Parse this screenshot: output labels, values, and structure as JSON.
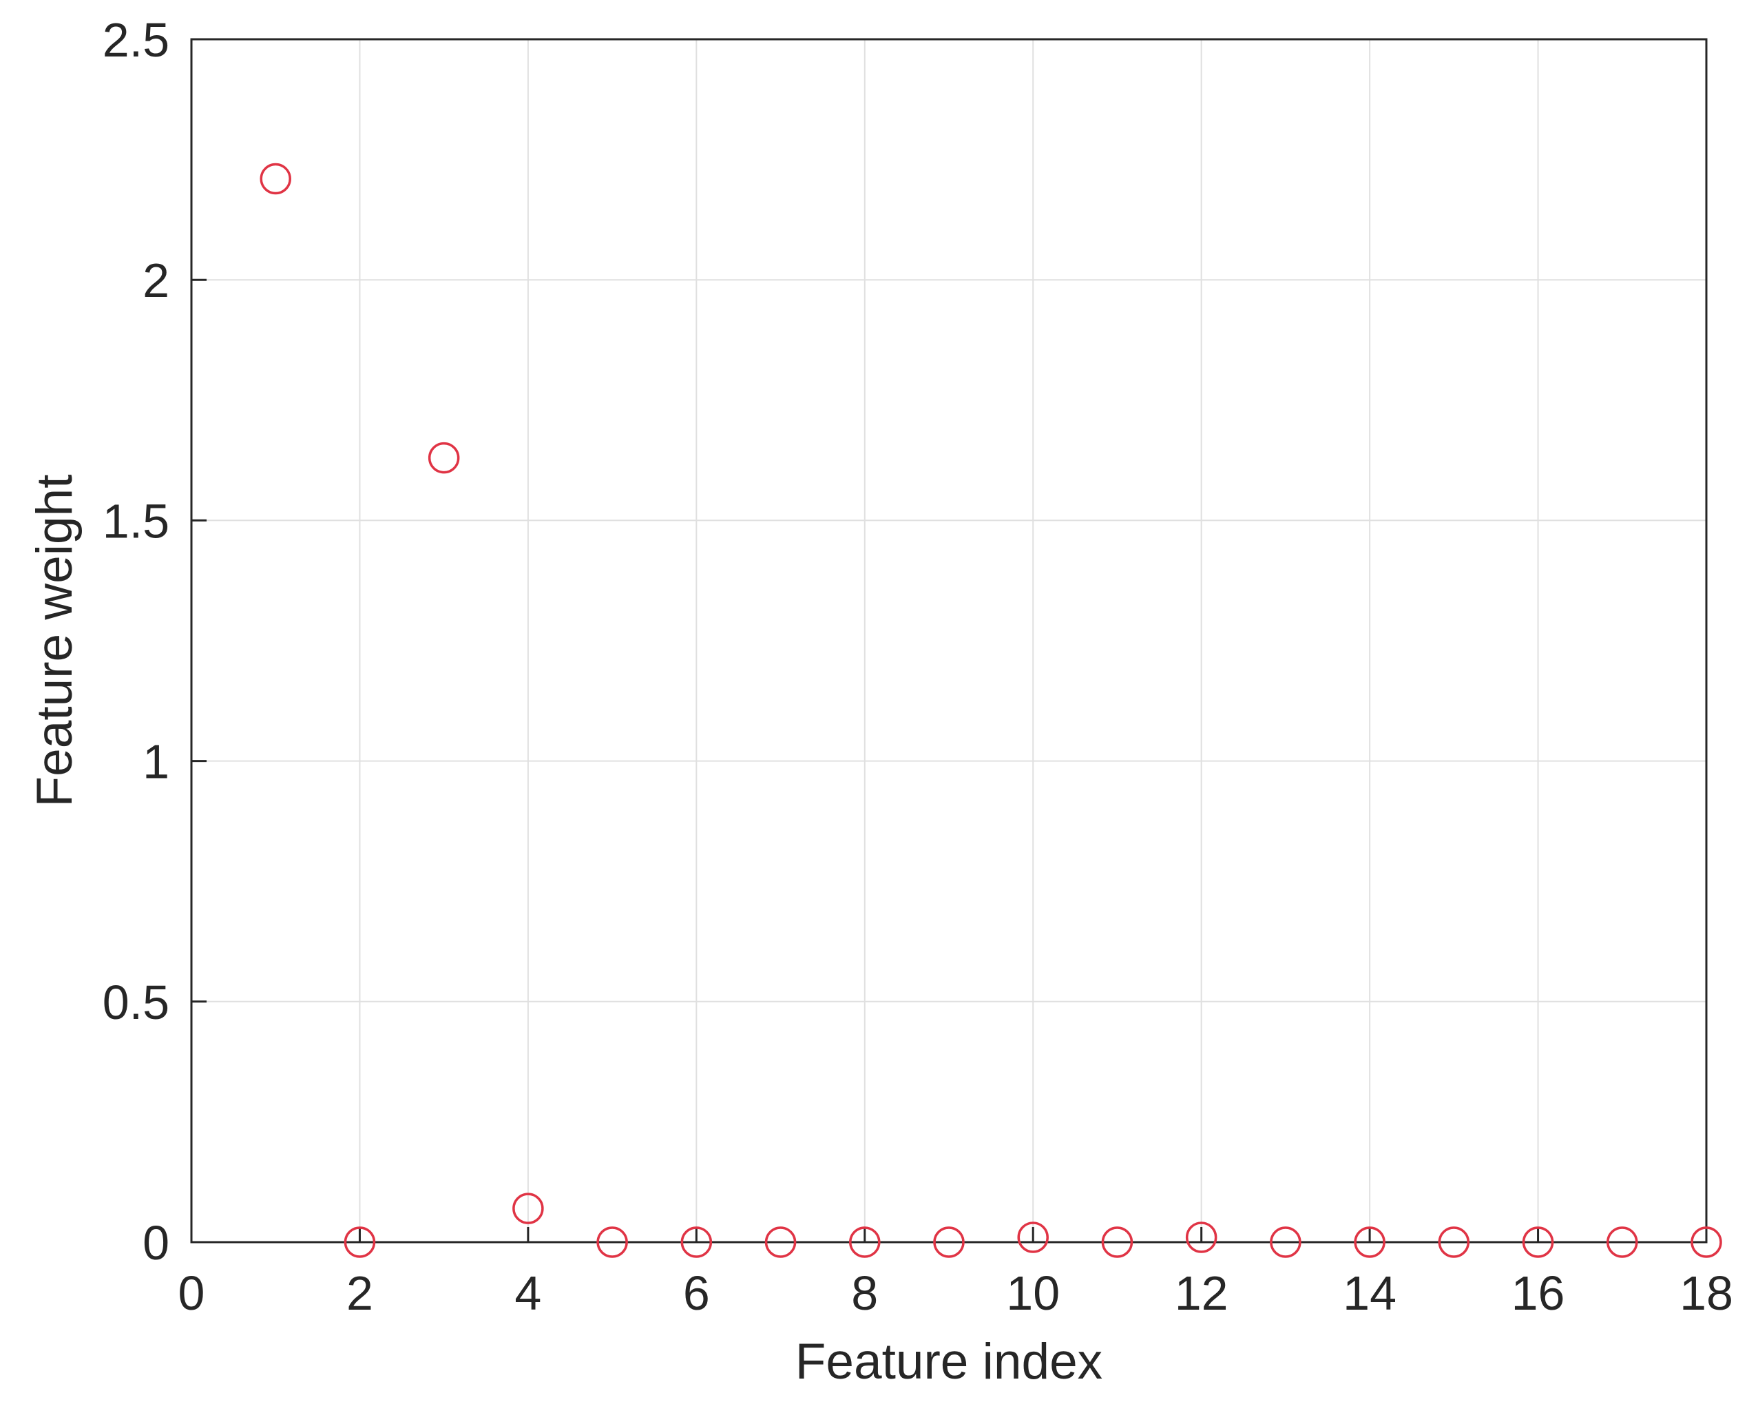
{
  "figure": {
    "background_color": "#ffffff"
  },
  "chart_data": {
    "type": "scatter",
    "title": "",
    "xlabel": "Feature index",
    "ylabel": "Feature weight",
    "x": [
      1,
      2,
      3,
      4,
      5,
      6,
      7,
      8,
      9,
      10,
      11,
      12,
      13,
      14,
      15,
      16,
      17,
      18
    ],
    "y": [
      2.21,
      0,
      1.63,
      0.07,
      0,
      0,
      0,
      0,
      0,
      0.01,
      0,
      0.01,
      0,
      0,
      0,
      0,
      0,
      0
    ],
    "xlim": [
      0,
      18
    ],
    "ylim": [
      0,
      2.5
    ],
    "xticks": [
      0,
      2,
      4,
      6,
      8,
      10,
      12,
      14,
      16,
      18
    ],
    "yticks": [
      0,
      0.5,
      1,
      1.5,
      2,
      2.5
    ],
    "xtick_labels": [
      "0",
      "2",
      "4",
      "6",
      "8",
      "10",
      "12",
      "14",
      "16",
      "18"
    ],
    "ytick_labels": [
      "0",
      "0.5",
      "1",
      "1.5",
      "2",
      "2.5"
    ],
    "grid": true,
    "legend_position": "none",
    "marker_shape": "circle-open",
    "marker_color": "#e03445",
    "axis_color": "#262626",
    "grid_color": "#e0e0e0"
  }
}
